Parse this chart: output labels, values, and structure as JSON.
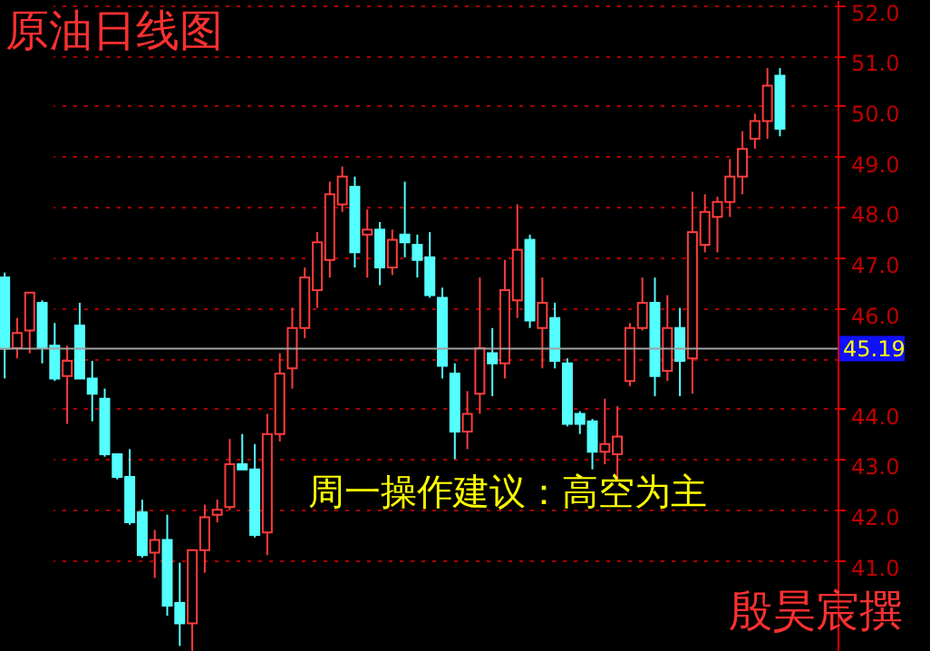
{
  "chart_data": {
    "type": "candlestick",
    "title": "原油日线图",
    "annotations": [
      "周一操作建议：高空为主",
      "殷昊宸撰"
    ],
    "categories": [
      null,
      null,
      null,
      null,
      null,
      null,
      null,
      null,
      null,
      null,
      null,
      null,
      null,
      null,
      null,
      null,
      null,
      null,
      null,
      null,
      null,
      null,
      null,
      null,
      null,
      null,
      null,
      null,
      null,
      null,
      null,
      null,
      null,
      null,
      null,
      null,
      null,
      null,
      null,
      null,
      null,
      null,
      null,
      null,
      null,
      null,
      null,
      null,
      null,
      null,
      null,
      null,
      null,
      null,
      null,
      null,
      null,
      null,
      null,
      null,
      null,
      null,
      null
    ],
    "ohlc": [
      [
        46.6,
        46.7,
        44.6,
        45.19
      ],
      [
        45.2,
        45.8,
        45.0,
        45.5
      ],
      [
        45.55,
        46.3,
        45.1,
        46.3
      ],
      [
        46.1,
        46.15,
        44.9,
        45.2
      ],
      [
        45.25,
        45.7,
        44.55,
        44.6
      ],
      [
        44.65,
        45.25,
        43.7,
        44.95
      ],
      [
        45.65,
        46.1,
        44.6,
        44.6
      ],
      [
        44.6,
        44.95,
        43.75,
        44.3
      ],
      [
        44.2,
        44.4,
        43.05,
        43.1
      ],
      [
        43.1,
        43.1,
        42.6,
        42.65
      ],
      [
        42.65,
        43.2,
        41.7,
        41.75
      ],
      [
        41.95,
        42.2,
        41.05,
        41.1
      ],
      [
        41.15,
        41.6,
        40.65,
        41.4
      ],
      [
        41.4,
        41.9,
        39.9,
        40.1
      ],
      [
        40.15,
        40.95,
        39.3,
        39.75
      ],
      [
        39.75,
        41.2,
        39.2,
        41.2
      ],
      [
        41.2,
        42.1,
        40.75,
        41.85
      ],
      [
        41.9,
        42.2,
        41.75,
        42.0
      ],
      [
        42.05,
        43.4,
        42.0,
        42.9
      ],
      [
        42.9,
        43.5,
        42.8,
        42.8
      ],
      [
        42.8,
        43.3,
        41.45,
        41.5
      ],
      [
        41.55,
        43.9,
        41.1,
        43.5
      ],
      [
        43.5,
        45.1,
        43.35,
        44.7
      ],
      [
        44.8,
        46.0,
        44.4,
        45.6
      ],
      [
        45.6,
        46.8,
        45.4,
        46.6
      ],
      [
        46.35,
        47.5,
        46.0,
        47.3
      ],
      [
        46.95,
        48.5,
        46.6,
        48.25
      ],
      [
        48.05,
        48.8,
        47.9,
        48.6
      ],
      [
        48.4,
        48.6,
        46.8,
        47.1
      ],
      [
        47.45,
        47.95,
        46.6,
        47.55
      ],
      [
        47.55,
        47.7,
        46.45,
        46.8
      ],
      [
        46.8,
        47.55,
        46.65,
        47.35
      ],
      [
        47.45,
        48.5,
        47.0,
        47.3
      ],
      [
        47.25,
        47.45,
        46.6,
        46.95
      ],
      [
        47.0,
        47.5,
        46.2,
        46.25
      ],
      [
        46.2,
        46.4,
        44.6,
        44.85
      ],
      [
        44.7,
        44.9,
        43.0,
        43.55
      ],
      [
        43.55,
        44.35,
        43.2,
        43.9
      ],
      [
        44.3,
        46.6,
        43.9,
        45.2
      ],
      [
        45.1,
        45.6,
        44.25,
        44.9
      ],
      [
        44.9,
        46.95,
        44.6,
        46.35
      ],
      [
        46.15,
        48.05,
        45.8,
        47.15
      ],
      [
        47.35,
        47.45,
        45.6,
        45.75
      ],
      [
        45.6,
        46.6,
        44.8,
        46.1
      ],
      [
        45.8,
        46.1,
        44.8,
        44.95
      ],
      [
        44.9,
        45.0,
        43.65,
        43.7
      ],
      [
        43.9,
        43.95,
        43.5,
        43.7
      ],
      [
        43.75,
        43.8,
        42.8,
        43.15
      ],
      [
        43.15,
        44.2,
        42.9,
        43.3
      ],
      [
        43.1,
        44.05,
        42.6,
        43.45
      ],
      [
        44.55,
        45.7,
        44.45,
        45.6
      ],
      [
        45.6,
        46.6,
        45.55,
        46.1
      ],
      [
        46.1,
        46.6,
        44.25,
        44.65
      ],
      [
        44.75,
        46.25,
        44.55,
        45.6
      ],
      [
        45.6,
        46.0,
        44.25,
        44.95
      ],
      [
        45.0,
        48.3,
        44.3,
        47.5
      ],
      [
        47.25,
        48.25,
        47.1,
        47.9
      ],
      [
        47.8,
        48.2,
        47.1,
        48.1
      ],
      [
        48.1,
        48.95,
        47.8,
        48.6
      ],
      [
        48.6,
        49.5,
        48.25,
        49.15
      ],
      [
        49.35,
        49.85,
        49.15,
        49.7
      ],
      [
        49.7,
        50.75,
        49.35,
        50.4
      ],
      [
        50.6,
        50.75,
        49.4,
        49.55
      ]
    ],
    "colors": [
      "#54ffff",
      "#ff3c3c",
      "#ff3c3c",
      "#54ffff",
      "#54ffff",
      "#ff3c3c",
      "#54ffff",
      "#54ffff",
      "#54ffff",
      "#54ffff",
      "#54ffff",
      "#54ffff",
      "#ff3c3c",
      "#54ffff",
      "#54ffff",
      "#ff3c3c",
      "#ff3c3c",
      "#ff3c3c",
      "#ff3c3c",
      "#54ffff",
      "#54ffff",
      "#ff3c3c",
      "#ff3c3c",
      "#ff3c3c",
      "#ff3c3c",
      "#ff3c3c",
      "#ff3c3c",
      "#ff3c3c",
      "#54ffff",
      "#ff3c3c",
      "#54ffff",
      "#ff3c3c",
      "#54ffff",
      "#54ffff",
      "#54ffff",
      "#54ffff",
      "#54ffff",
      "#ff3c3c",
      "#ff3c3c",
      "#54ffff",
      "#ff3c3c",
      "#ff3c3c",
      "#54ffff",
      "#ff3c3c",
      "#54ffff",
      "#54ffff",
      "#54ffff",
      "#54ffff",
      "#ff3c3c",
      "#ff3c3c",
      "#ff3c3c",
      "#ff3c3c",
      "#54ffff",
      "#ff3c3c",
      "#54ffff",
      "#ff3c3c",
      "#ff3c3c",
      "#ff3c3c",
      "#ff3c3c",
      "#ff3c3c",
      "#ff3c3c",
      "#ff3c3c",
      "#54ffff"
    ],
    "ylim": [
      39.2,
      52.1
    ],
    "yticks": [
      {
        "value": 41,
        "label": "41.0"
      },
      {
        "value": 42,
        "label": "42.0"
      },
      {
        "value": 43,
        "label": "43.0"
      },
      {
        "value": 44,
        "label": "44.0"
      },
      {
        "value": 45,
        "label": null
      },
      {
        "value": 46,
        "label": "46.0"
      },
      {
        "value": 47,
        "label": "47.0"
      },
      {
        "value": 48,
        "label": "48.0"
      },
      {
        "value": 49,
        "label": "49.0"
      },
      {
        "value": 50,
        "label": "50.0"
      },
      {
        "value": 51,
        "label": "51.0"
      },
      {
        "value": 52,
        "label": "52.0"
      }
    ],
    "ref_lines": [
      {
        "axis": "y",
        "value": 45.19,
        "label": "45.19",
        "color": "#a0a0a0"
      }
    ],
    "grid": "y",
    "tick_labels": "y"
  }
}
